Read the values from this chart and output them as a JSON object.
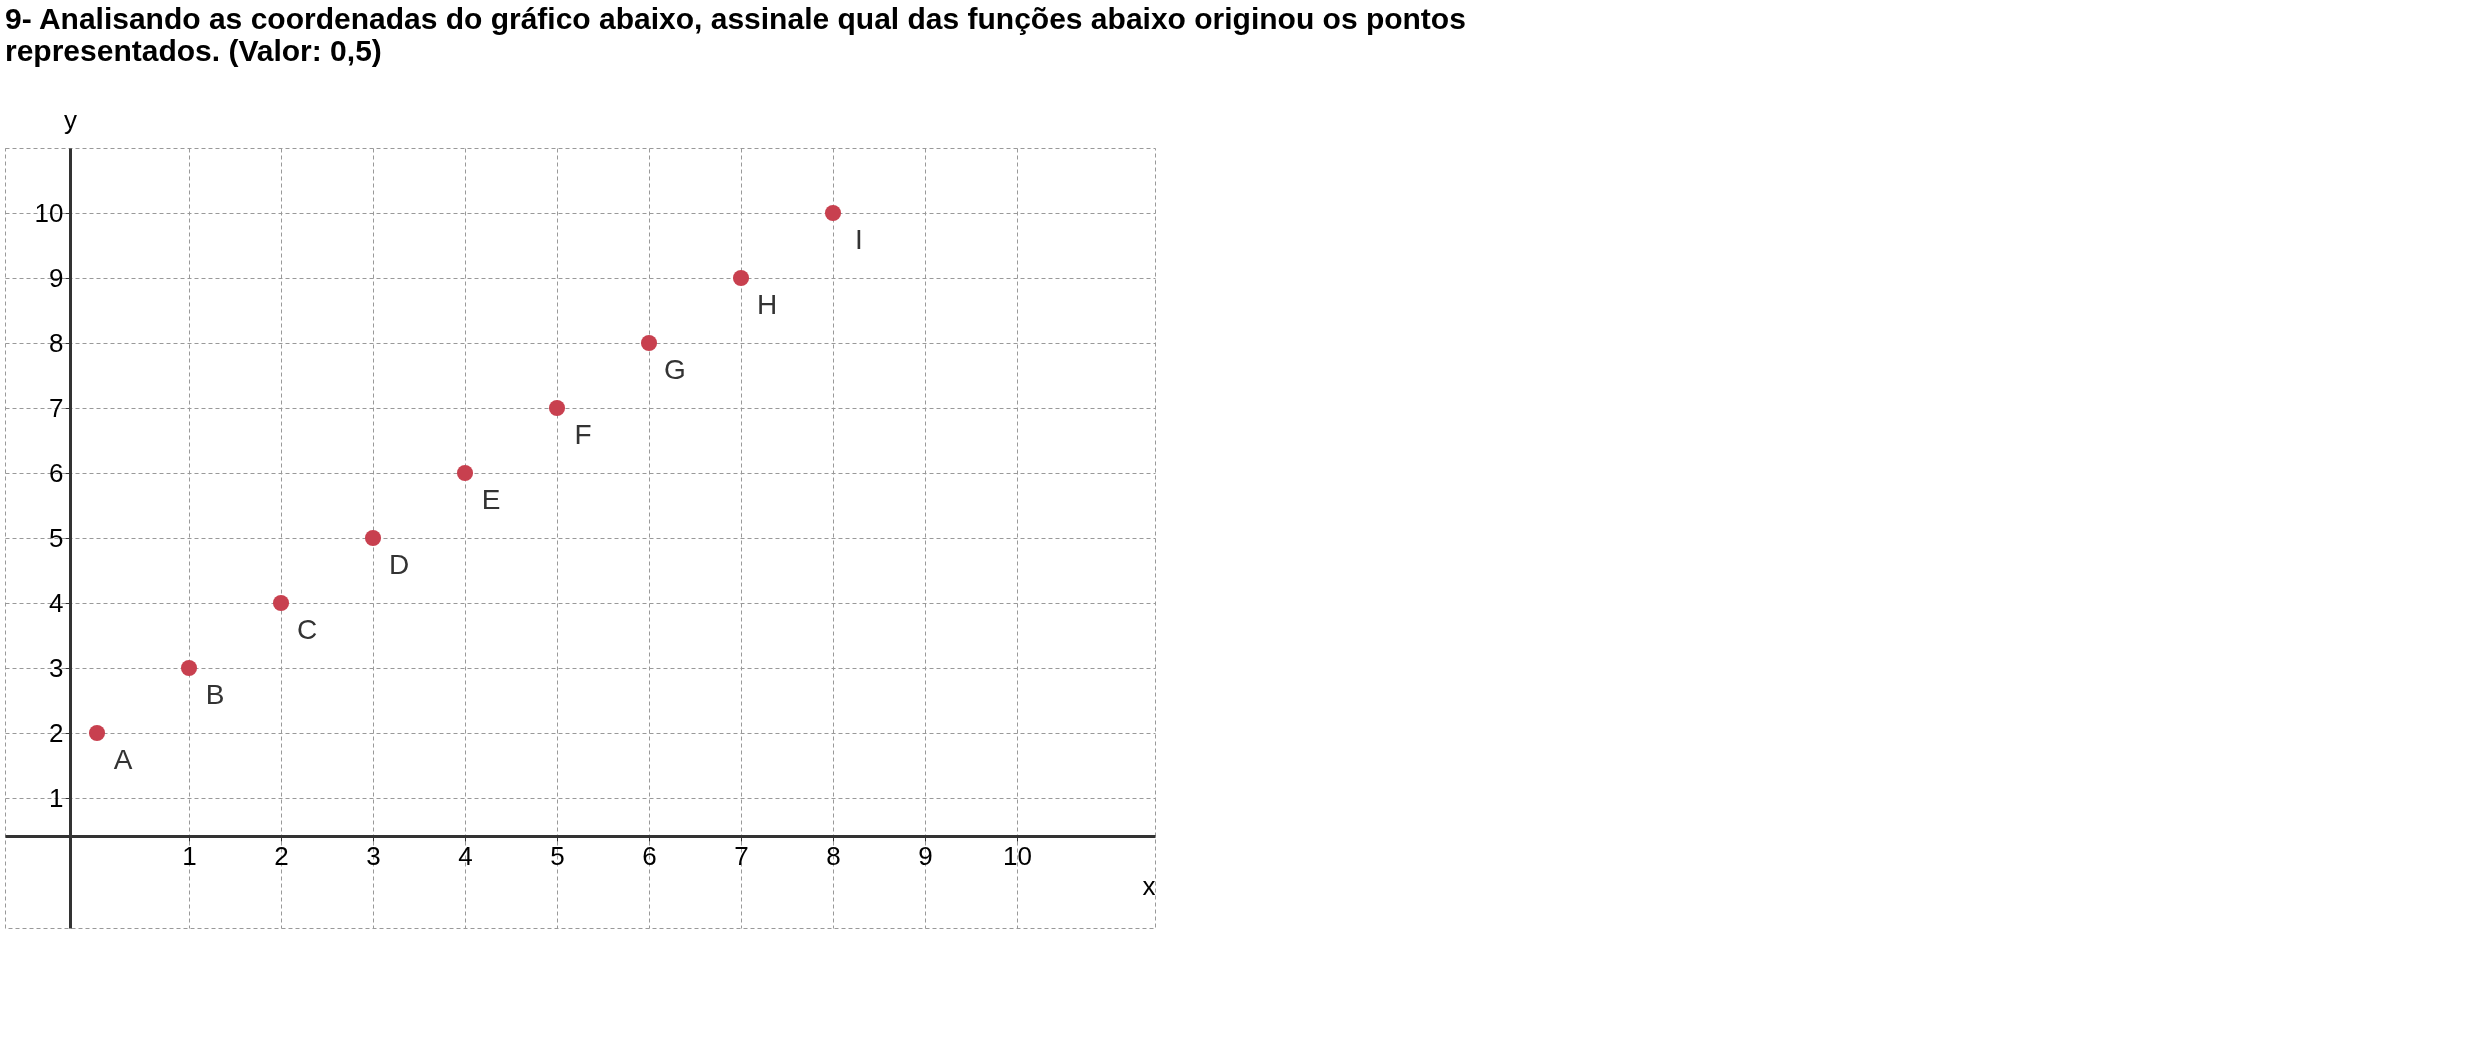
{
  "chart_data": {
    "type": "scatter",
    "title": "9- Analisando as coordenadas do gráfico abaixo, assinale qual das funções abaixo originou os pontos representados. (Valor: 0,5)",
    "xlabel": "x",
    "ylabel": "y",
    "x": [
      0,
      1,
      2,
      3,
      4,
      5,
      6,
      7,
      8
    ],
    "series": [
      {
        "color": "#c8404f",
        "values": [
          2,
          3,
          4,
          5,
          6,
          7,
          8,
          9,
          10
        ]
      }
    ],
    "annotations": [
      {
        "text": "A",
        "x": 0,
        "y": 2
      },
      {
        "text": "B",
        "x": 1,
        "y": 3
      },
      {
        "text": "C",
        "x": 2,
        "y": 4
      },
      {
        "text": "D",
        "x": 3,
        "y": 5
      },
      {
        "text": "E",
        "x": 4,
        "y": 6
      },
      {
        "text": "F",
        "x": 5,
        "y": 7
      },
      {
        "text": "G",
        "x": 6,
        "y": 8
      },
      {
        "text": "H",
        "x": 7,
        "y": 9
      },
      {
        "text": "I",
        "x": 8,
        "y": 10
      }
    ],
    "xlim": [
      -1,
      11.5
    ],
    "ylim": [
      -1,
      11
    ],
    "xticks": [
      1,
      2,
      3,
      4,
      5,
      6,
      7,
      8,
      9,
      10
    ],
    "yticks": [
      1,
      2,
      3,
      4,
      5,
      6,
      7,
      8,
      9,
      10
    ],
    "grid": true,
    "marker": "circle"
  }
}
